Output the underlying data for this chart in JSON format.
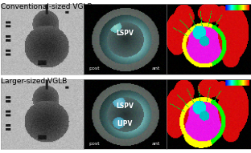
{
  "title_row1": "Conventional-sized VGLB",
  "title_row2": "Larger-sized VGLB",
  "label_post": "post",
  "label_ant": "ant",
  "label_lspv": "LSPV",
  "label_lipv": "LIPV",
  "bg_color": "#ffffff",
  "title_fontsize": 6.5,
  "label_fontsize": 5.5,
  "panel_label_fontsize": 4.5,
  "fig_width": 3.12,
  "fig_height": 1.91,
  "dpi": 100
}
